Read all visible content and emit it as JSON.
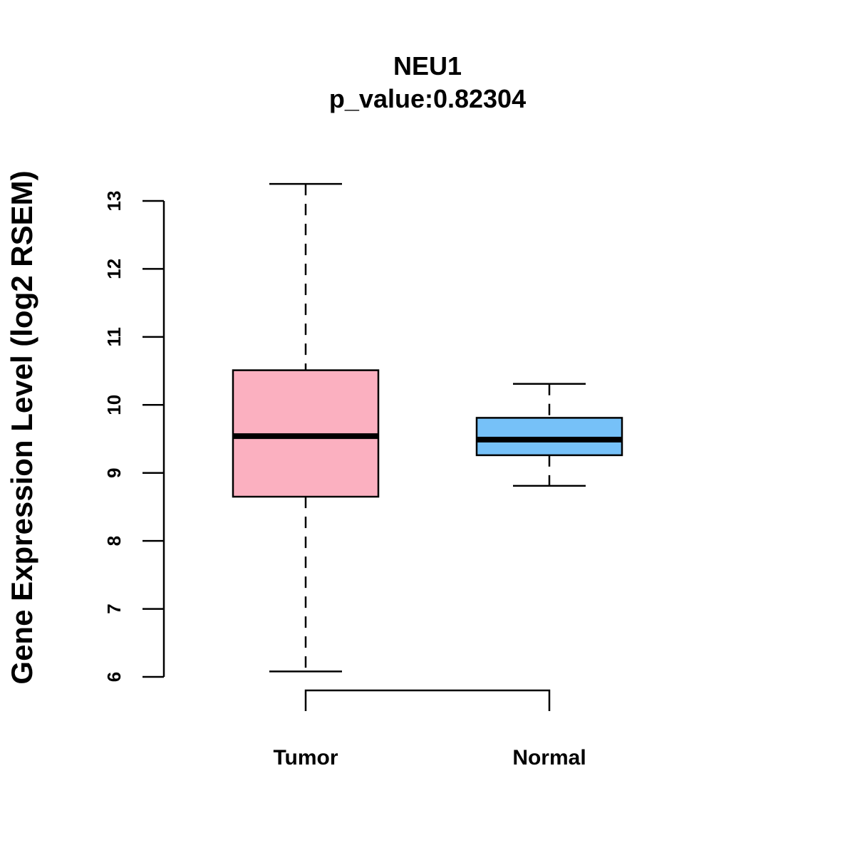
{
  "chart_data": {
    "type": "box",
    "title": "NEU1",
    "subtitle": "p_value:0.82304",
    "ylabel": "Gene Expression Level (log2 RSEM)",
    "xlabel": "",
    "ylim": [
      6,
      13
    ],
    "yticks": [
      "6",
      "7",
      "8",
      "9",
      "10",
      "11",
      "12",
      "13"
    ],
    "categories": [
      "Tumor",
      "Normal"
    ],
    "boxes": [
      {
        "name": "Tumor",
        "whisker_low": 6.08,
        "q1": 8.65,
        "median": 9.54,
        "q3": 10.51,
        "whisker_high": 13.25,
        "color": "#FBB0C0"
      },
      {
        "name": "Normal",
        "whisker_low": 8.81,
        "q1": 9.26,
        "median": 9.49,
        "q3": 9.81,
        "whisker_high": 10.31,
        "color": "#76C1F8"
      }
    ],
    "bracket": [
      "Tumor",
      "Normal"
    ]
  }
}
